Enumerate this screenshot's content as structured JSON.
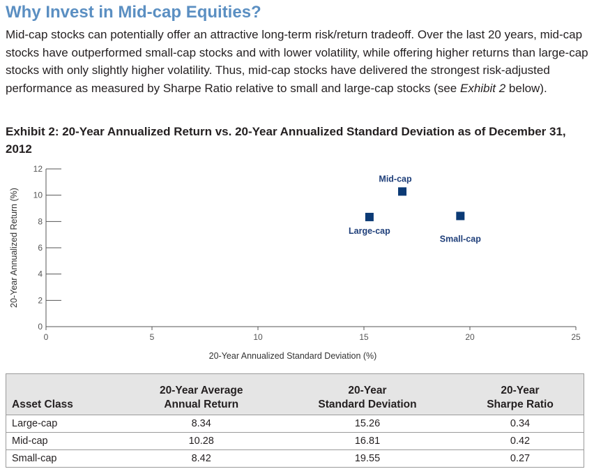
{
  "heading": "Why Invest in Mid-cap Equities?",
  "intro": {
    "before_em": "Mid-cap stocks can potentially offer an attractive long-term risk/return tradeoff. Over the last 20 years, mid-cap stocks have outperformed small-cap stocks and with lower volatility, while offering higher returns than large-cap stocks with only slightly higher volatility. Thus, mid-cap stocks have delivered the strongest risk-adjusted performance as measured by Sharpe Ratio relative to small and large-cap stocks (see ",
    "em": "Exhibit 2",
    "after_em": " below)."
  },
  "exhibit_title": "Exhibit 2: 20-Year Annualized Return vs. 20-Year Annualized Standard Deviation as of December 31, 2012",
  "chart_data": {
    "type": "scatter",
    "title": "",
    "xlabel": "20-Year Annualized Standard Deviation (%)",
    "ylabel": "20-Year Annualized Return (%)",
    "xlim": [
      0,
      25
    ],
    "ylim": [
      0,
      12
    ],
    "x_ticks": [
      0,
      5,
      10,
      15,
      20,
      25
    ],
    "y_ticks": [
      0,
      2,
      4,
      6,
      8,
      10,
      12
    ],
    "grid": false,
    "marker_color": "#0b3a75",
    "points": [
      {
        "label": "Large-cap",
        "x": 15.26,
        "y": 8.34
      },
      {
        "label": "Mid-cap",
        "x": 16.81,
        "y": 10.28
      },
      {
        "label": "Small-cap",
        "x": 19.55,
        "y": 8.42
      }
    ]
  },
  "table": {
    "headers": [
      [
        "Asset Class"
      ],
      [
        "20-Year Average",
        "Annual Return"
      ],
      [
        "20-Year",
        "Standard Deviation"
      ],
      [
        "20-Year",
        "Sharpe Ratio"
      ]
    ],
    "rows": [
      [
        "Large-cap",
        "8.34",
        "15.26",
        "0.34"
      ],
      [
        "Mid-cap",
        "10.28",
        "16.81",
        "0.42"
      ],
      [
        "Small-cap",
        "8.42",
        "19.55",
        "0.27"
      ]
    ]
  }
}
